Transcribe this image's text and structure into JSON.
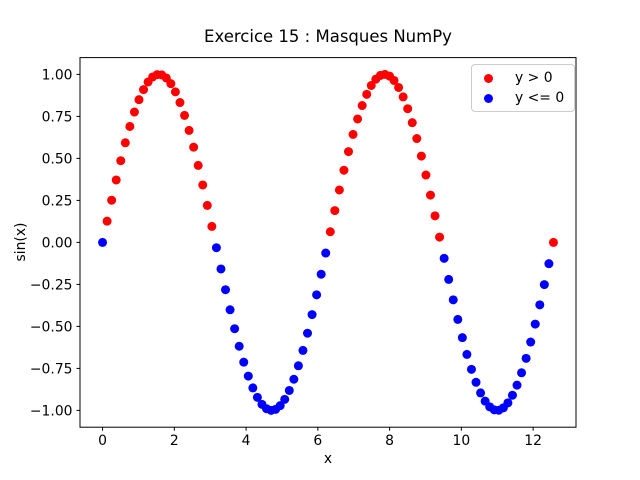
{
  "figure": {
    "background": "#ffffff",
    "title": "Exercice 15 : Masques NumPy",
    "xlabel": "x",
    "ylabel": "sin(x)"
  },
  "chart_data": {
    "type": "scatter",
    "title": "Exercice 15 : Masques NumPy",
    "xlabel": "x",
    "ylabel": "sin(x)",
    "x_sampling": {
      "start": 0,
      "stop": 12.566370614359172,
      "n": 100,
      "description": "x = linspace(0, 4*pi, 100)"
    },
    "y_function": "sin(x)",
    "series": [
      {
        "name": "y > 0",
        "mask": "y>0",
        "color": "#ff0000",
        "marker": "circle"
      },
      {
        "name": "y <= 0",
        "mask": "y<=0",
        "color": "#0000ff",
        "marker": "circle"
      }
    ],
    "xlim": [
      -0.6283185307,
      13.1947084054
    ],
    "ylim": [
      -1.1,
      1.1
    ],
    "xticks": [
      0,
      2,
      4,
      6,
      8,
      10,
      12
    ],
    "xtick_labels": [
      "0",
      "2",
      "4",
      "6",
      "8",
      "10",
      "12"
    ],
    "yticks": [
      -1.0,
      -0.75,
      -0.5,
      -0.25,
      0.0,
      0.25,
      0.5,
      0.75,
      1.0
    ],
    "ytick_labels": [
      "−1.00",
      "−0.75",
      "−0.50",
      "−0.25",
      "0.00",
      "0.25",
      "0.50",
      "0.75",
      "1.00"
    ],
    "grid": false,
    "legend_position": "upper right",
    "marker_radius_px": 4.5,
    "frame_color": "#000000"
  },
  "legend": {
    "items": [
      {
        "label": "y > 0",
        "color": "#ff0000"
      },
      {
        "label": "y <= 0",
        "color": "#0000ff"
      }
    ]
  }
}
